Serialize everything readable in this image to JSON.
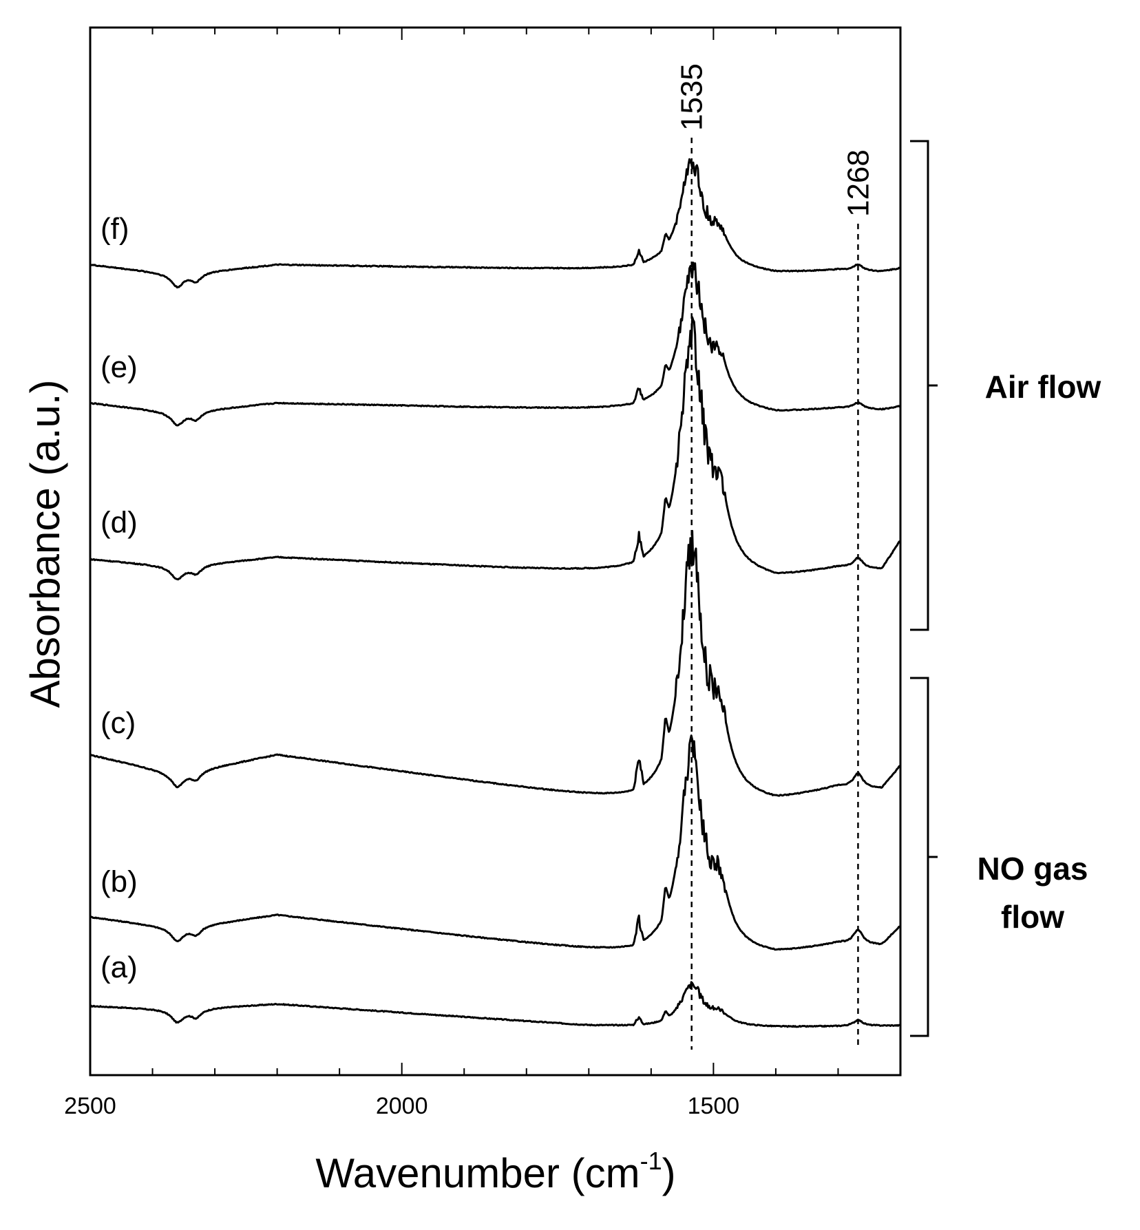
{
  "chart_data": {
    "type": "line",
    "xlabel": "Wavenumber (cm",
    "xlabel_sup": "-1",
    "xlabel_tail": ")",
    "ylabel": "Absorbance (a.u.)",
    "xlim": [
      2500,
      1200
    ],
    "x_reversed": true,
    "x_ticks": [
      2500,
      2000,
      1500
    ],
    "x_tick_labels": [
      "2500",
      "2000",
      "1500"
    ],
    "y_ticks": "none",
    "markers": [
      {
        "label": "1535",
        "x": 1535
      },
      {
        "label": "1268",
        "x": 1268
      }
    ],
    "groups": [
      {
        "label_lines": [
          "Air flow"
        ],
        "series": [
          "(d)",
          "(e)",
          "(f)"
        ]
      },
      {
        "label_lines": [
          "NO gas",
          "flow"
        ],
        "series": [
          "(a)",
          "(b)",
          "(c)"
        ]
      }
    ],
    "series": [
      {
        "name": "(a)",
        "baseline": [
          [
            2500,
            0.5
          ],
          [
            2360,
            0.3
          ],
          [
            2200,
            0.6
          ],
          [
            1700,
            -0.5
          ],
          [
            1600,
            -0.6
          ],
          [
            1400,
            -0.6
          ],
          [
            1200,
            -0.5
          ]
        ],
        "peak_1535": 2.1,
        "peak_1268": 0.3,
        "shoulder_1620": 0.5,
        "end_rise": 0.0,
        "offset": 0.0
      },
      {
        "name": "(b)",
        "baseline": [
          [
            2500,
            1.0
          ],
          [
            2360,
            0.4
          ],
          [
            2200,
            1.1
          ],
          [
            1620,
            -1.0
          ],
          [
            1550,
            -0.9
          ],
          [
            1400,
            -1.0
          ],
          [
            1300,
            -0.4
          ],
          [
            1200,
            -0.5
          ]
        ],
        "peak_1535": 10.0,
        "peak_1268": 0.7,
        "shoulder_1620": 1.6,
        "end_rise": 1.0,
        "offset": 4.0
      },
      {
        "name": "(c)",
        "baseline": [
          [
            2500,
            1.2
          ],
          [
            2360,
            0.2
          ],
          [
            2200,
            1.2
          ],
          [
            1620,
            -1.3
          ],
          [
            1550,
            -1.2
          ],
          [
            1400,
            -1.3
          ],
          [
            1300,
            -0.5
          ],
          [
            1200,
            -0.6
          ]
        ],
        "peak_1535": 12.5,
        "peak_1268": 0.7,
        "shoulder_1620": 2.0,
        "end_rise": 1.2,
        "offset": 12.0
      },
      {
        "name": "(d)",
        "baseline": [
          [
            2500,
            0.1
          ],
          [
            2360,
            -0.3
          ],
          [
            2200,
            0.2
          ],
          [
            1620,
            -0.7
          ],
          [
            1550,
            -0.6
          ],
          [
            1400,
            -1.0
          ],
          [
            1300,
            -0.4
          ],
          [
            1200,
            -0.5
          ]
        ],
        "peak_1535": 11.7,
        "peak_1268": 0.5,
        "shoulder_1620": 1.6,
        "end_rise": 1.5,
        "offset": 23.0
      },
      {
        "name": "(e)",
        "baseline": [
          [
            2500,
            0.0
          ],
          [
            2360,
            -0.5
          ],
          [
            2200,
            0.0
          ],
          [
            1620,
            -0.4
          ],
          [
            1550,
            -0.3
          ],
          [
            1400,
            -0.6
          ],
          [
            1300,
            -0.3
          ],
          [
            1200,
            -0.4
          ]
        ],
        "peak_1535": 7.0,
        "peak_1268": 0.3,
        "shoulder_1620": 0.9,
        "end_rise": 0.2,
        "offset": 31.0
      },
      {
        "name": "(f)",
        "baseline": [
          [
            2500,
            0.0
          ],
          [
            2360,
            -0.5
          ],
          [
            2200,
            0.0
          ],
          [
            1620,
            -0.3
          ],
          [
            1550,
            -0.2
          ],
          [
            1400,
            -0.5
          ],
          [
            1300,
            -0.3
          ],
          [
            1200,
            -0.4
          ]
        ],
        "peak_1535": 5.3,
        "peak_1268": 0.3,
        "shoulder_1620": 0.8,
        "end_rise": 0.2,
        "offset": 38.0
      }
    ],
    "ylim": [
      -3,
      50
    ],
    "grid": false,
    "legend": "none"
  }
}
